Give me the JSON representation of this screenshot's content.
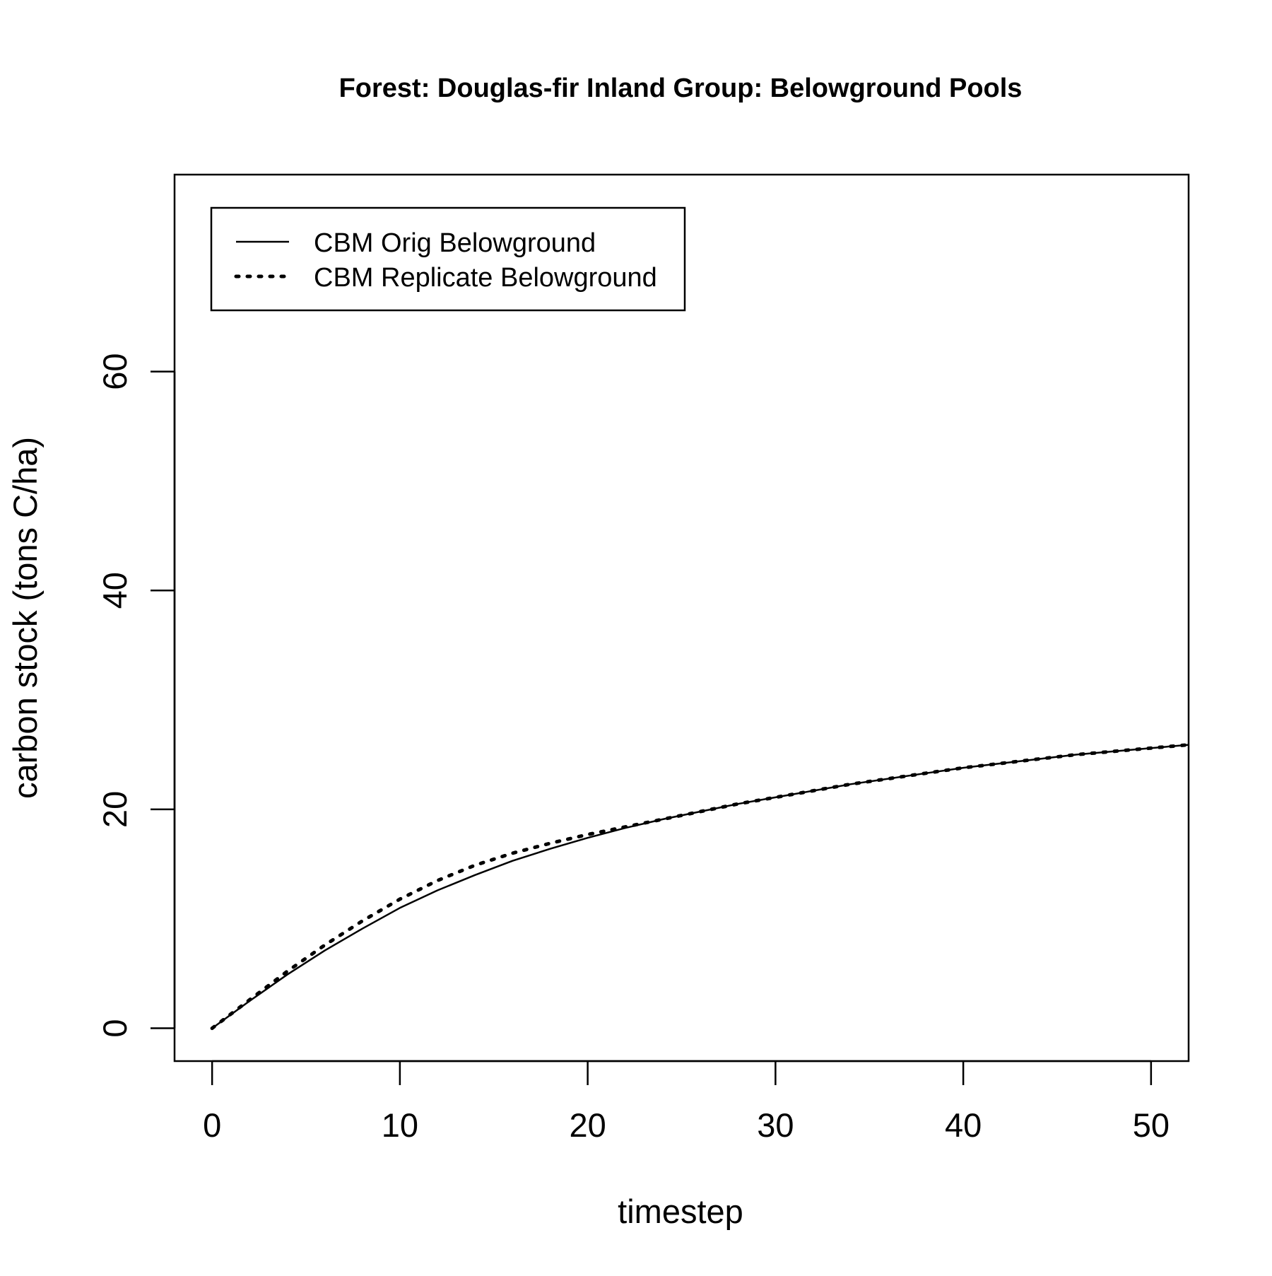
{
  "chart_data": {
    "type": "line",
    "title": "Forest: Douglas-fir Inland Group: Belowground Pools",
    "xlabel": "timestep",
    "ylabel": "carbon stock (tons C/ha)",
    "xlim": [
      -2,
      52
    ],
    "ylim": [
      -3,
      78
    ],
    "x_ticks": [
      0,
      10,
      20,
      30,
      40,
      50
    ],
    "y_ticks": [
      0,
      20,
      40,
      60
    ],
    "grid": false,
    "legend_position": "top-left",
    "series": [
      {
        "name": "CBM Orig Belowground",
        "line_style": "solid",
        "color": "#000000",
        "x": [
          0,
          2,
          4,
          6,
          8,
          10,
          12,
          14,
          16,
          18,
          20,
          22,
          24,
          26,
          28,
          30,
          32,
          34,
          36,
          38,
          40,
          42,
          44,
          46,
          48,
          50,
          52
        ],
        "y": [
          0,
          2.5,
          4.9,
          7.1,
          9.1,
          11.0,
          12.6,
          14.0,
          15.3,
          16.4,
          17.4,
          18.3,
          19.1,
          19.8,
          20.5,
          21.1,
          21.7,
          22.3,
          22.8,
          23.3,
          23.8,
          24.2,
          24.6,
          25.0,
          25.3,
          25.6,
          25.9
        ]
      },
      {
        "name": "CBM Replicate Belowground",
        "line_style": "dotted",
        "color": "#000000",
        "x": [
          0,
          2,
          4,
          6,
          8,
          10,
          12,
          14,
          16,
          18,
          20,
          22,
          24,
          26,
          28,
          30,
          32,
          34,
          36,
          38,
          40,
          42,
          44,
          46,
          48,
          50,
          52
        ],
        "y": [
          0,
          2.6,
          5.2,
          7.6,
          9.8,
          11.8,
          13.5,
          14.9,
          16.0,
          16.9,
          17.7,
          18.4,
          19.1,
          19.8,
          20.5,
          21.1,
          21.7,
          22.3,
          22.8,
          23.3,
          23.8,
          24.2,
          24.6,
          25.0,
          25.3,
          25.6,
          25.9
        ]
      }
    ]
  }
}
